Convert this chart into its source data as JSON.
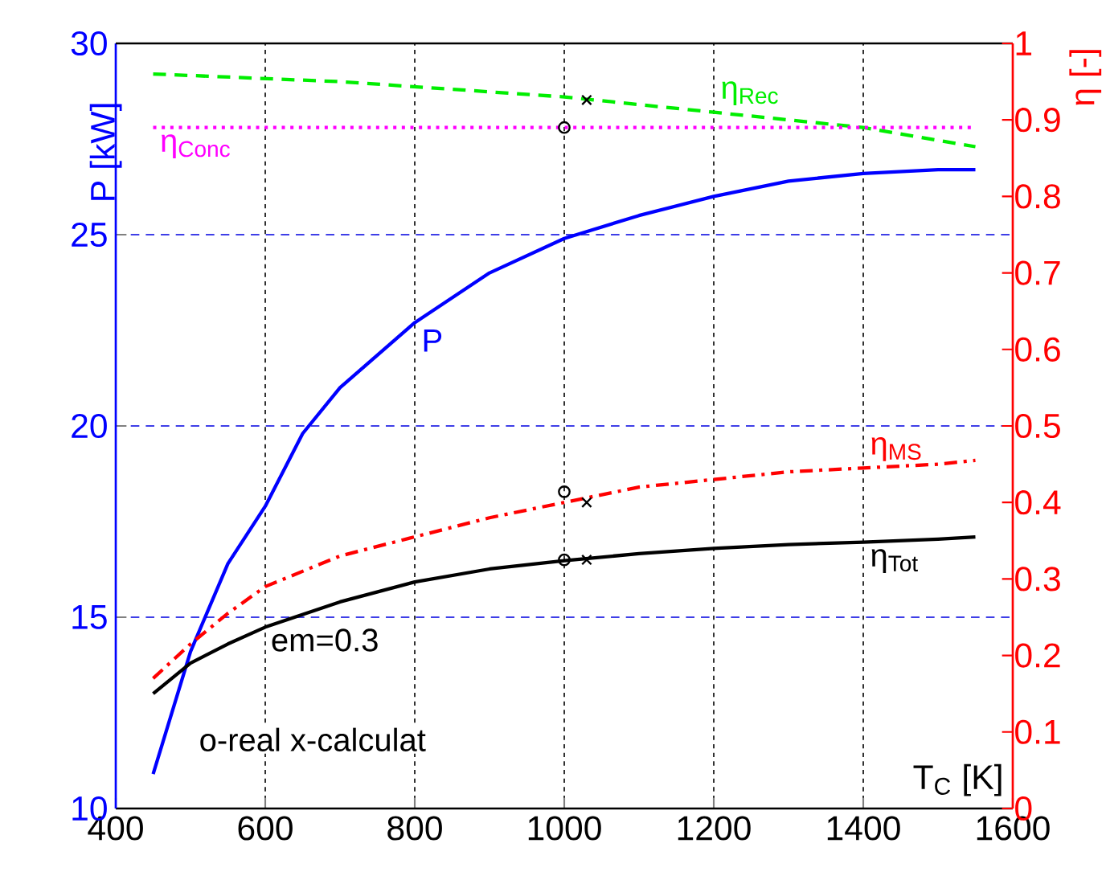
{
  "chart_data": {
    "type": "line",
    "xlabel": "T$_{C}$ [K]",
    "ylabel": "P [kW]",
    "y2label": "η [-]",
    "xlim": [
      400,
      1600
    ],
    "xticks": [
      400,
      600,
      800,
      1000,
      1200,
      1400,
      1600
    ],
    "ylim": [
      10,
      30
    ],
    "yticks": [
      10,
      15,
      20,
      25,
      30
    ],
    "y2lim": [
      0,
      1
    ],
    "y2ticks": [
      0,
      0.1,
      0.2,
      0.3,
      0.4,
      0.5,
      0.6,
      0.7,
      0.8,
      0.9,
      1
    ],
    "grid": true,
    "annotations": [
      "em=0.3",
      "o-real  x-calculat"
    ],
    "series": [
      {
        "name": "P",
        "color": "#0000ff",
        "line_style": "solid",
        "x": [
          450,
          500,
          550,
          600,
          650,
          700,
          800,
          900,
          1000,
          1100,
          1200,
          1300,
          1400,
          1500,
          1550
        ],
        "values": [
          10.9,
          14.1,
          16.4,
          17.9,
          19.8,
          21.0,
          22.7,
          24.0,
          24.9,
          25.5,
          26.0,
          26.4,
          26.6,
          26.7,
          26.7
        ]
      },
      {
        "name": "η$_{Rec}$",
        "color": "#00ee00",
        "line_style": "dashed",
        "axis": "y2",
        "x": [
          450,
          700,
          1000,
          1200,
          1400,
          1550
        ],
        "values": [
          0.96,
          0.95,
          0.93,
          0.91,
          0.89,
          0.865
        ]
      },
      {
        "name": "η$_{Conc}$",
        "color": "#ff00ff",
        "line_style": "dotted",
        "axis": "y2",
        "x": [
          450,
          1550
        ],
        "values": [
          0.89,
          0.89
        ]
      },
      {
        "name": "η$_{MS}$",
        "color": "#ff0000",
        "line_style": "dashdot",
        "axis": "y2",
        "x": [
          450,
          500,
          550,
          600,
          700,
          800,
          900,
          1000,
          1100,
          1200,
          1300,
          1400,
          1500,
          1550
        ],
        "values": [
          0.17,
          0.215,
          0.255,
          0.29,
          0.33,
          0.355,
          0.38,
          0.4,
          0.42,
          0.43,
          0.44,
          0.445,
          0.45,
          0.455
        ]
      },
      {
        "name": "η$_{Tot}$",
        "color": "#000000",
        "line_style": "solid",
        "axis": "y2",
        "x": [
          450,
          500,
          550,
          600,
          700,
          800,
          900,
          1000,
          1100,
          1200,
          1300,
          1400,
          1500,
          1550
        ],
        "values": [
          0.15,
          0.19,
          0.215,
          0.237,
          0.27,
          0.296,
          0.313,
          0.324,
          0.333,
          0.34,
          0.345,
          0.348,
          0.352,
          0.355
        ]
      },
      {
        "type": "scatter",
        "marker": "circle",
        "color": "#000000",
        "axis": "y2",
        "x": [
          1000,
          1000,
          1000
        ],
        "values": [
          0.89,
          0.414,
          0.325
        ]
      },
      {
        "type": "scatter",
        "marker": "cross",
        "color": "#000000",
        "axis": "y2",
        "x": [
          1030,
          1030,
          1030
        ],
        "values": [
          0.926,
          0.4,
          0.325
        ]
      }
    ]
  }
}
